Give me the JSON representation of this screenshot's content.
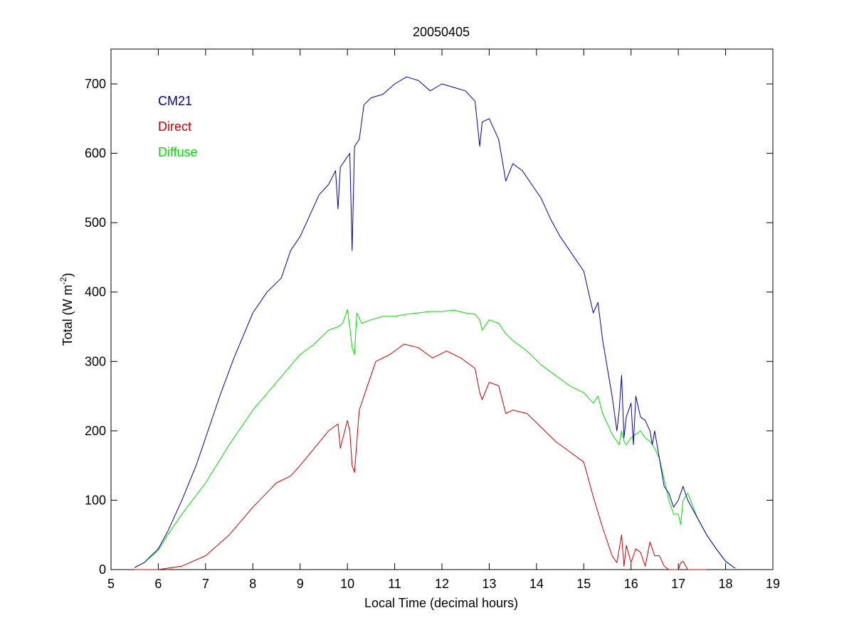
{
  "chart_data": {
    "type": "line",
    "title": "20050405",
    "xlabel": "Local Time (decimal hours)",
    "ylabel": {
      "main": "Total (W m",
      "superscript": "-2",
      "suffix": ")"
    },
    "xlim": [
      5,
      19
    ],
    "ylim": [
      0,
      750
    ],
    "xticks": [
      5,
      6,
      7,
      8,
      9,
      10,
      11,
      12,
      13,
      14,
      15,
      16,
      17,
      18,
      19
    ],
    "yticks": [
      0,
      100,
      200,
      300,
      400,
      500,
      600,
      700
    ],
    "grid": false,
    "legend_position": "top-left",
    "series": [
      {
        "name": "CM21",
        "color": "#0000aa",
        "x": [
          5.5,
          5.7,
          6.0,
          6.2,
          6.5,
          6.8,
          7.0,
          7.3,
          7.6,
          8.0,
          8.3,
          8.6,
          8.8,
          9.0,
          9.2,
          9.4,
          9.6,
          9.75,
          9.8,
          9.85,
          9.95,
          10.05,
          10.1,
          10.15,
          10.25,
          10.35,
          10.5,
          10.75,
          11.0,
          11.25,
          11.5,
          11.75,
          12.0,
          12.25,
          12.5,
          12.7,
          12.8,
          12.85,
          13.0,
          13.2,
          13.3,
          13.35,
          13.5,
          13.7,
          13.9,
          14.1,
          14.3,
          14.5,
          14.7,
          14.9,
          15.0,
          15.1,
          15.2,
          15.3,
          15.4,
          15.5,
          15.6,
          15.7,
          15.75,
          15.8,
          15.85,
          15.9,
          16.0,
          16.05,
          16.1,
          16.2,
          16.3,
          16.4,
          16.45,
          16.5,
          16.6,
          16.7,
          16.8,
          16.9,
          17.0,
          17.1,
          17.2,
          17.4,
          17.6,
          17.8,
          18.0,
          18.2
        ],
        "values": [
          3,
          10,
          30,
          55,
          100,
          150,
          190,
          250,
          305,
          370,
          400,
          420,
          460,
          480,
          510,
          540,
          555,
          575,
          520,
          580,
          590,
          600,
          460,
          610,
          620,
          670,
          680,
          685,
          700,
          710,
          705,
          690,
          700,
          695,
          690,
          675,
          610,
          645,
          650,
          620,
          580,
          560,
          585,
          575,
          555,
          535,
          505,
          480,
          460,
          440,
          430,
          400,
          370,
          385,
          330,
          290,
          250,
          200,
          230,
          280,
          190,
          220,
          240,
          180,
          250,
          220,
          215,
          200,
          180,
          200,
          160,
          120,
          110,
          90,
          100,
          120,
          100,
          75,
          50,
          30,
          12,
          2
        ]
      },
      {
        "name": "Direct",
        "color": "#cc0000",
        "x": [
          5.5,
          6.0,
          6.5,
          7.0,
          7.5,
          8.0,
          8.5,
          8.8,
          9.0,
          9.3,
          9.6,
          9.8,
          9.85,
          10.0,
          10.05,
          10.1,
          10.15,
          10.25,
          10.4,
          10.6,
          10.9,
          11.2,
          11.5,
          11.8,
          12.1,
          12.4,
          12.7,
          12.8,
          12.85,
          13.0,
          13.2,
          13.35,
          13.5,
          13.8,
          14.1,
          14.4,
          14.7,
          15.0,
          15.2,
          15.4,
          15.6,
          15.7,
          15.8,
          15.85,
          15.9,
          16.0,
          16.1,
          16.2,
          16.3,
          16.4,
          16.5,
          16.6,
          16.7,
          16.8,
          17.0,
          17.05,
          17.1,
          17.2,
          17.4,
          17.6
        ],
        "values": [
          0,
          0,
          5,
          20,
          50,
          90,
          125,
          135,
          150,
          175,
          200,
          210,
          175,
          215,
          200,
          150,
          140,
          230,
          260,
          300,
          310,
          325,
          320,
          305,
          315,
          305,
          290,
          255,
          245,
          270,
          265,
          225,
          230,
          225,
          205,
          185,
          170,
          155,
          105,
          60,
          20,
          10,
          50,
          5,
          35,
          10,
          30,
          25,
          5,
          40,
          20,
          20,
          5,
          0,
          0,
          10,
          12,
          0,
          0,
          0
        ]
      },
      {
        "name": "Diffuse",
        "color": "#00dd00",
        "x": [
          5.5,
          5.7,
          6.0,
          6.2,
          6.5,
          7.0,
          7.5,
          8.0,
          8.5,
          9.0,
          9.3,
          9.6,
          9.8,
          9.9,
          10.0,
          10.05,
          10.1,
          10.15,
          10.2,
          10.3,
          10.5,
          10.75,
          11.0,
          11.25,
          11.5,
          11.75,
          12.0,
          12.25,
          12.5,
          12.7,
          12.8,
          12.85,
          13.0,
          13.2,
          13.35,
          13.5,
          13.8,
          14.1,
          14.4,
          14.7,
          15.0,
          15.2,
          15.3,
          15.4,
          15.5,
          15.6,
          15.7,
          15.75,
          15.8,
          15.85,
          15.9,
          16.0,
          16.1,
          16.2,
          16.3,
          16.4,
          16.5,
          16.6,
          16.7,
          16.8,
          16.9,
          17.0,
          17.05,
          17.1,
          17.2,
          17.4,
          17.6,
          17.8,
          18.0,
          18.2
        ],
        "values": [
          3,
          10,
          28,
          50,
          80,
          125,
          180,
          230,
          270,
          310,
          325,
          345,
          350,
          355,
          375,
          350,
          320,
          310,
          370,
          355,
          360,
          365,
          365,
          368,
          370,
          372,
          372,
          374,
          370,
          368,
          360,
          345,
          360,
          355,
          340,
          330,
          315,
          295,
          280,
          265,
          255,
          240,
          250,
          225,
          210,
          195,
          185,
          180,
          200,
          185,
          180,
          190,
          195,
          200,
          190,
          185,
          175,
          160,
          130,
          100,
          80,
          80,
          65,
          100,
          110,
          75,
          50,
          30,
          12,
          2
        ]
      }
    ]
  }
}
